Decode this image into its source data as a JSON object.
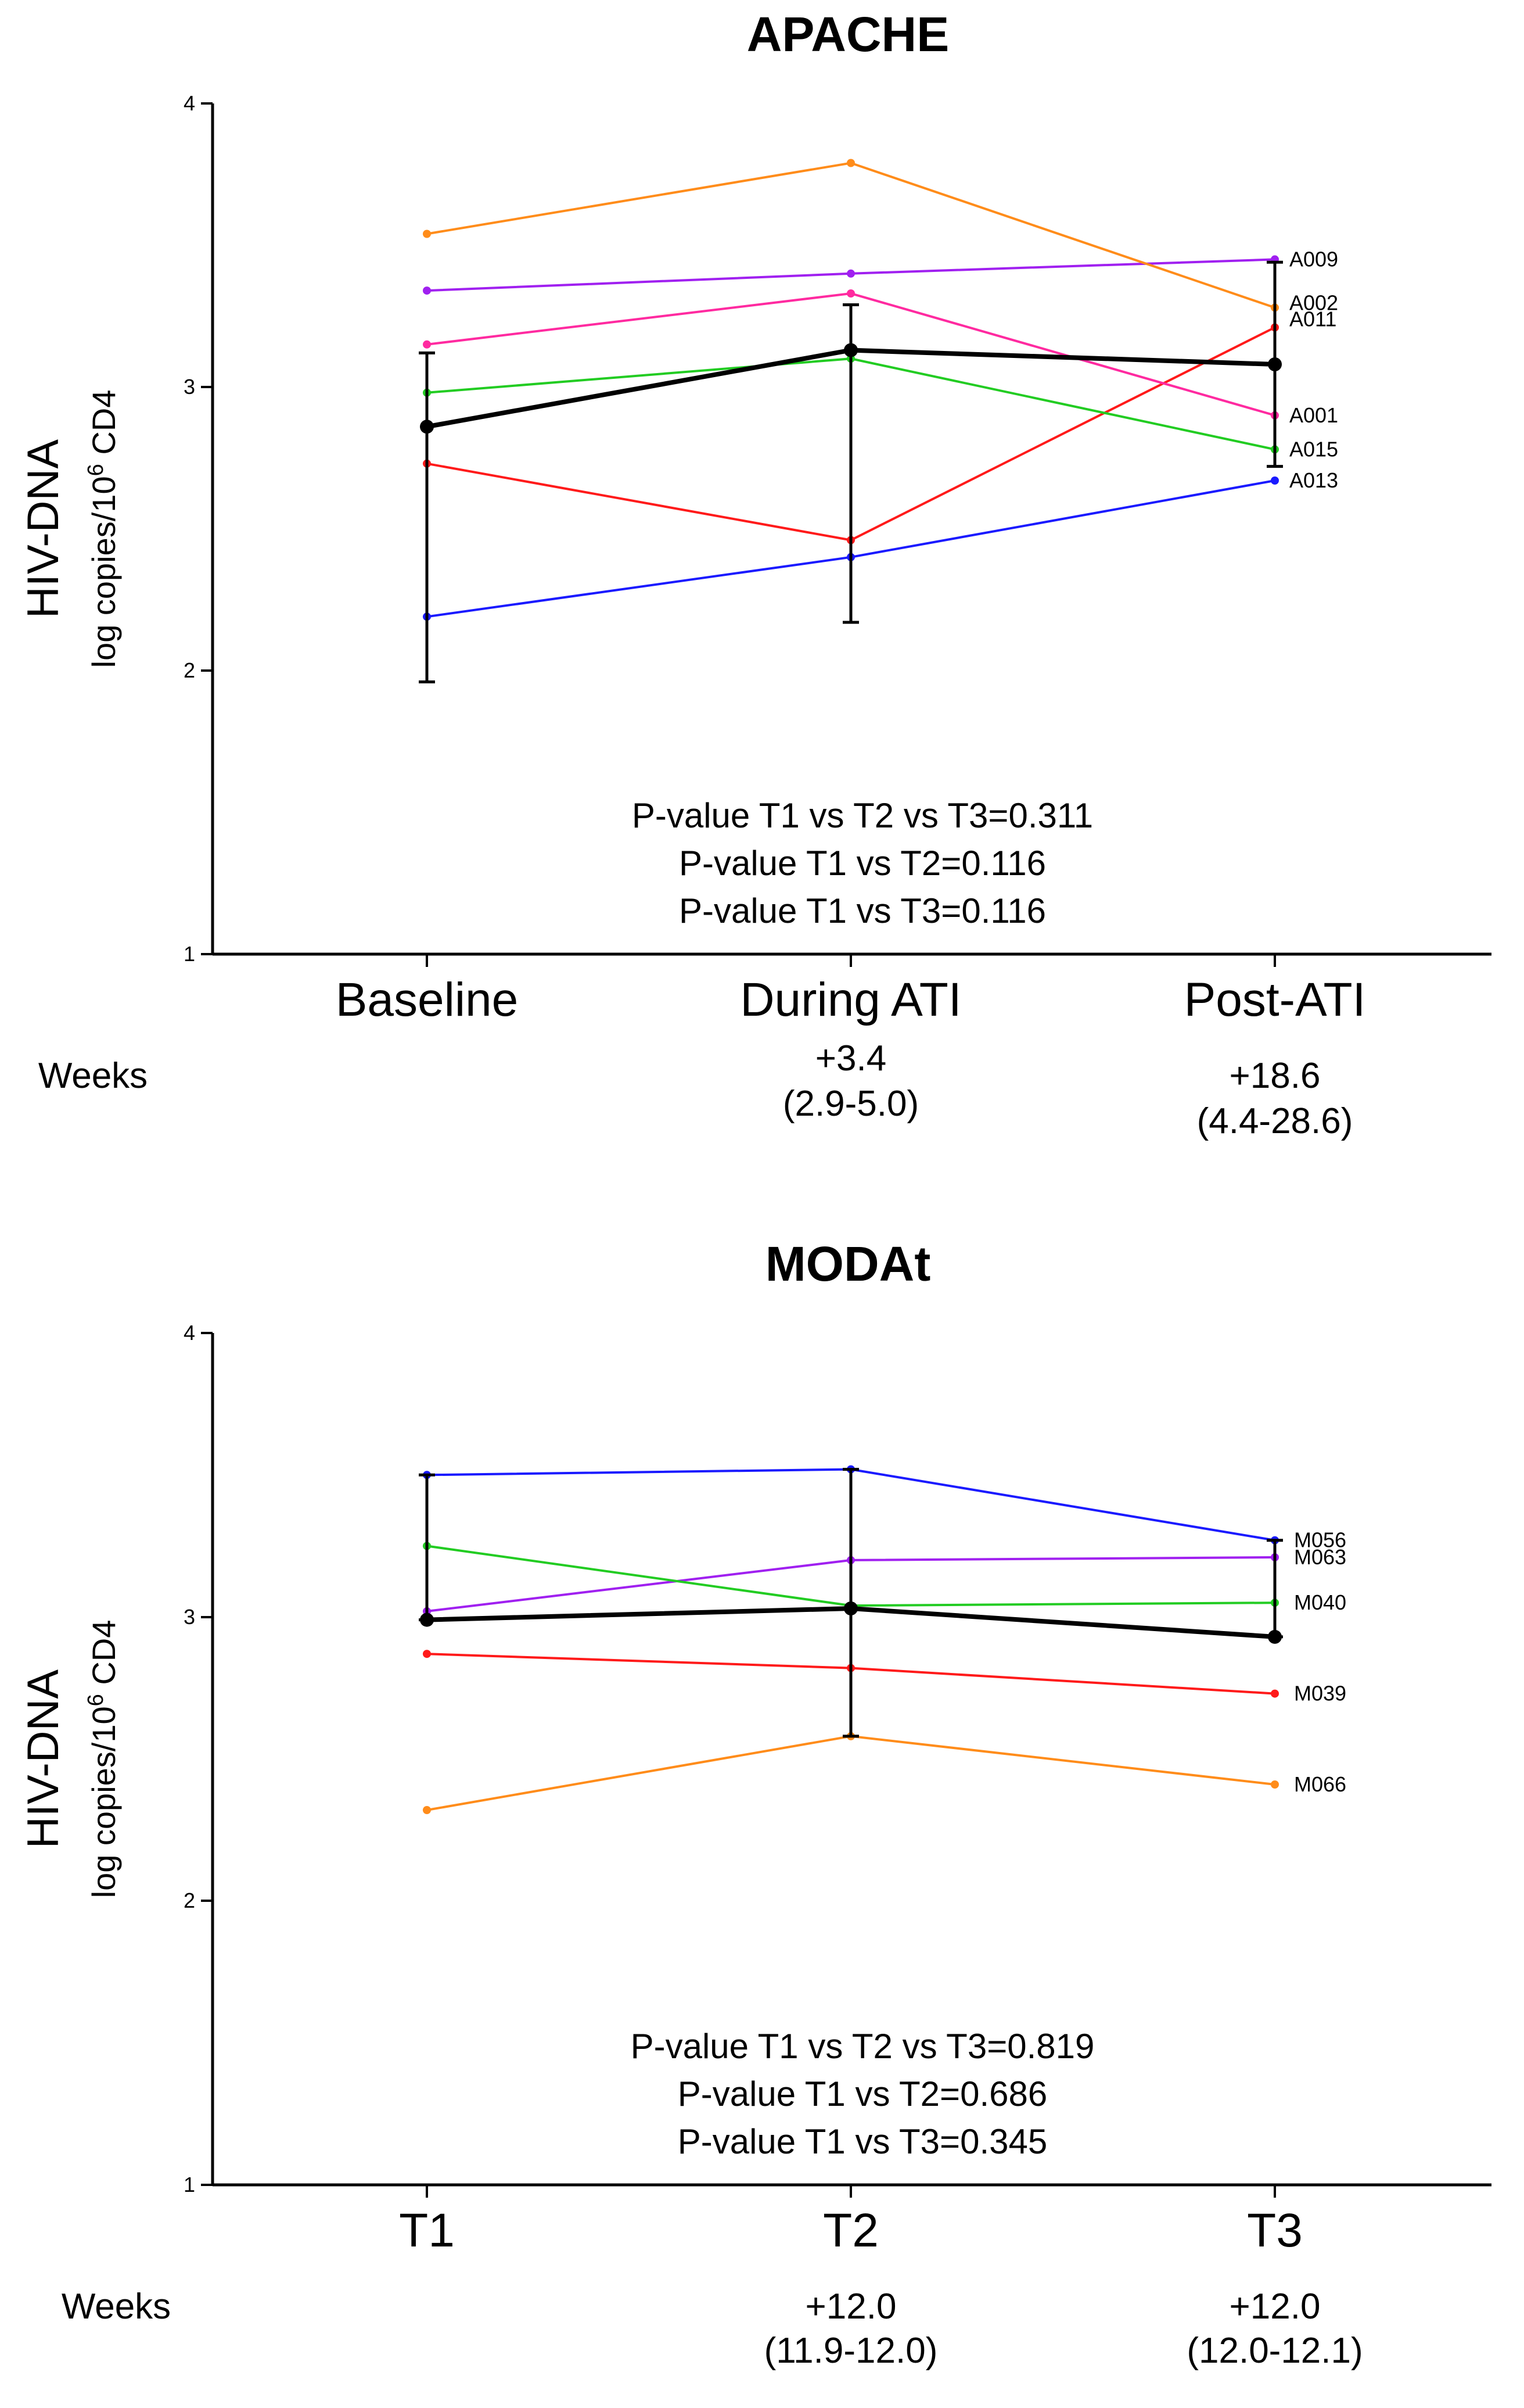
{
  "chart_data": [
    {
      "type": "line",
      "title": "APACHE",
      "ylabel": "HIV-DNA",
      "ylabel_sub": "log copies/10^6 CD4",
      "ylim": [
        1,
        4
      ],
      "yticks": [
        1,
        2,
        3,
        4
      ],
      "categories": [
        "Baseline",
        "During ATI",
        "Post-ATI"
      ],
      "weeks_label": "Weeks",
      "weeks": [
        {
          "value": "",
          "range": ""
        },
        {
          "value": "+3.4",
          "range": "(2.9-5.0)"
        },
        {
          "value": "+18.6",
          "range": "(4.4-28.6)"
        }
      ],
      "series": [
        {
          "name": "A009",
          "color": "#a020f0",
          "values": [
            3.34,
            3.4,
            3.45
          ]
        },
        {
          "name": "A002",
          "color": "#ff8c1a",
          "values": [
            3.54,
            3.79,
            3.28
          ]
        },
        {
          "name": "A011",
          "color": "#ff1a1a",
          "values": [
            2.73,
            2.46,
            3.21
          ]
        },
        {
          "name": "A001",
          "color": "#ff2aa0",
          "values": [
            3.15,
            3.33,
            2.9
          ]
        },
        {
          "name": "A015",
          "color": "#22cc22",
          "values": [
            2.98,
            3.1,
            2.78
          ]
        },
        {
          "name": "A013",
          "color": "#1a1aff",
          "values": [
            2.19,
            2.4,
            2.67
          ]
        }
      ],
      "mean": {
        "color": "#000000",
        "values": [
          2.86,
          3.13,
          3.08
        ],
        "lower": [
          1.96,
          2.17,
          2.72
        ],
        "upper": [
          3.12,
          3.29,
          3.44
        ]
      },
      "annotations": [
        "P-value T1 vs T2 vs T3=0.311",
        "P-value T1 vs T2=0.116",
        "P-value T1 vs T3=0.116"
      ]
    },
    {
      "type": "line",
      "title": "MODAt",
      "ylabel": "HIV-DNA",
      "ylabel_sub": "log copies/10^6 CD4",
      "ylim": [
        1,
        4
      ],
      "yticks": [
        1,
        2,
        3,
        4
      ],
      "categories": [
        "T1",
        "T2",
        "T3"
      ],
      "weeks_label": "Weeks",
      "weeks": [
        {
          "value": "",
          "range": ""
        },
        {
          "value": "+12.0",
          "range": "(11.9-12.0)"
        },
        {
          "value": "+12.0",
          "range": "(12.0-12.1)"
        }
      ],
      "series": [
        {
          "name": "M056",
          "color": "#1a1aff",
          "values": [
            3.5,
            3.52,
            3.27
          ]
        },
        {
          "name": "M063",
          "color": "#a020f0",
          "values": [
            3.02,
            3.2,
            3.21
          ]
        },
        {
          "name": "M040",
          "color": "#22cc22",
          "values": [
            3.25,
            3.04,
            3.05
          ]
        },
        {
          "name": "M039",
          "color": "#ff1a1a",
          "values": [
            2.87,
            2.82,
            2.73
          ]
        },
        {
          "name": "M066",
          "color": "#ff8c1a",
          "values": [
            2.32,
            2.58,
            2.41
          ]
        }
      ],
      "mean": {
        "color": "#000000",
        "values": [
          2.99,
          3.03,
          2.93
        ],
        "lower": [
          2.99,
          2.58,
          2.93
        ],
        "upper": [
          3.5,
          3.52,
          3.27
        ]
      },
      "annotations": [
        "P-value T1 vs T2 vs T3=0.819",
        "P-value T1 vs T2=0.686",
        "P-value T1 vs T3=0.345"
      ]
    }
  ]
}
